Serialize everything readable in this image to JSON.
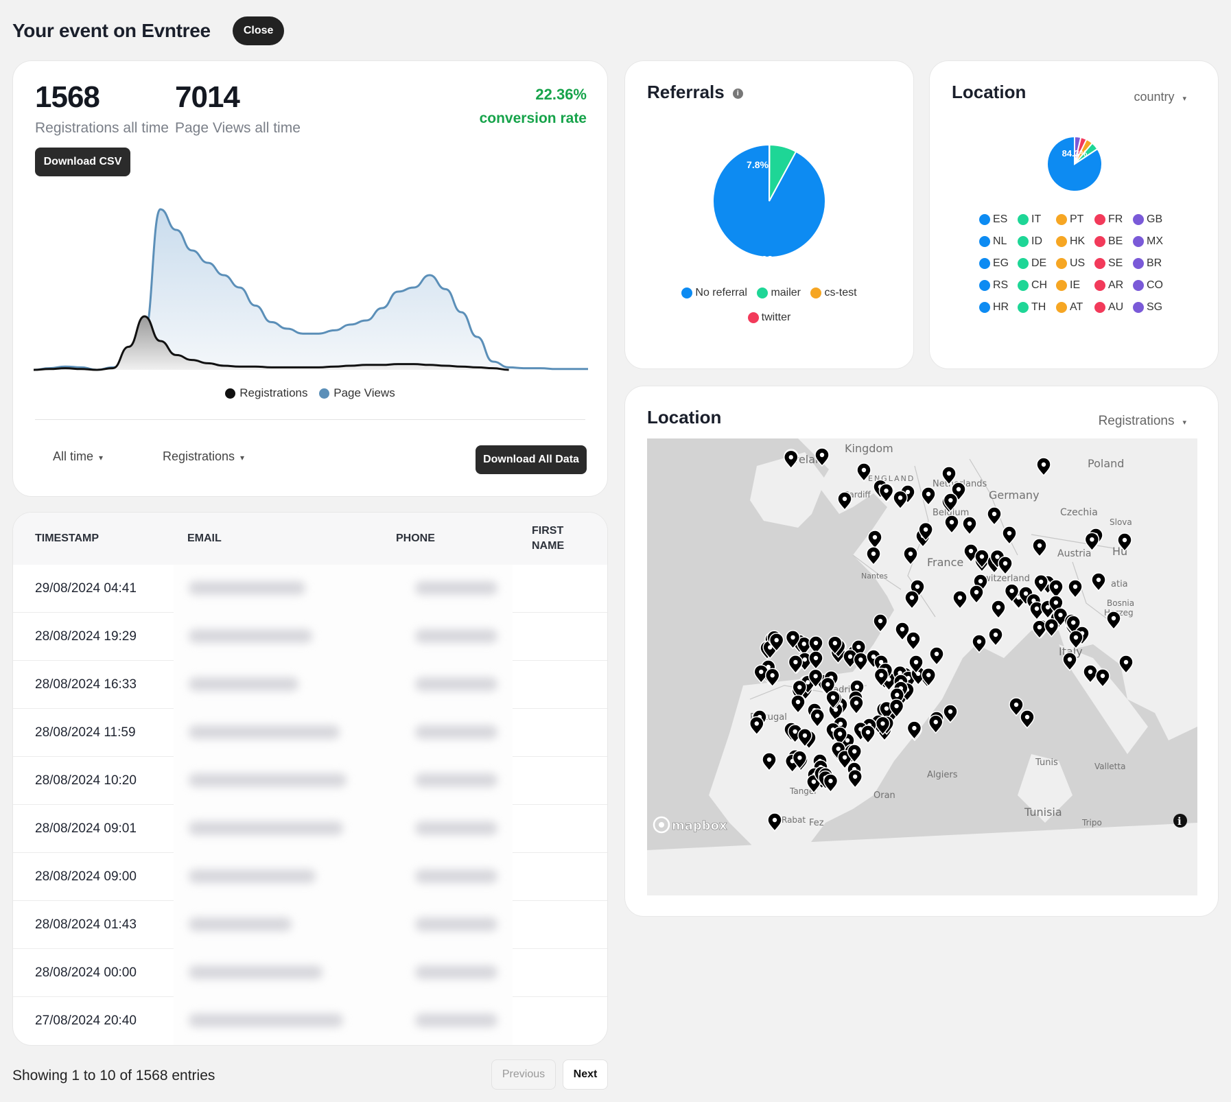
{
  "header": {
    "title": "Your event on Evntree",
    "close_label": "Close"
  },
  "stats": {
    "registrations_value": "1568",
    "registrations_label": "Registrations all time",
    "pageviews_value": "7014",
    "pageviews_label": "Page Views all time",
    "conversion_value": "22.36%",
    "conversion_label": "conversion rate",
    "download_csv_label": "Download CSV"
  },
  "trend_chart": {
    "legend": [
      {
        "name": "Registrations",
        "color": "#111111"
      },
      {
        "name": "Page Views",
        "color": "#5b8fb8"
      }
    ]
  },
  "filters": {
    "time_label": "All time",
    "metric_label": "Registrations",
    "download_all_label": "Download All Data"
  },
  "table": {
    "headers": {
      "timestamp": "TIMESTAMP",
      "email": "EMAIL",
      "phone": "PHONE",
      "first_name_line1": "FIRST",
      "first_name_line2": "NAME"
    },
    "rows": [
      {
        "timestamp": "29/08/2024 04:41"
      },
      {
        "timestamp": "28/08/2024 19:29"
      },
      {
        "timestamp": "28/08/2024 16:33"
      },
      {
        "timestamp": "28/08/2024 11:59"
      },
      {
        "timestamp": "28/08/2024 10:20"
      },
      {
        "timestamp": "28/08/2024 09:01"
      },
      {
        "timestamp": "28/08/2024 09:00"
      },
      {
        "timestamp": "28/08/2024 01:43"
      },
      {
        "timestamp": "28/08/2024 00:00"
      },
      {
        "timestamp": "27/08/2024 20:40"
      }
    ]
  },
  "pagination": {
    "summary": "Showing 1 to 10 of 1568 entries",
    "previous_label": "Previous",
    "next_label": "Next"
  },
  "referrals": {
    "title": "Referrals",
    "info_icon": "info-icon",
    "legend": [
      {
        "name": "No referral",
        "color": "#0d8bf2"
      },
      {
        "name": "mailer",
        "color": "#1ed696"
      },
      {
        "name": "cs-test",
        "color": "#f6a623"
      },
      {
        "name": "twitter",
        "color": "#f23a5a"
      }
    ]
  },
  "country": {
    "title": "Location",
    "select_label": "country",
    "pie_label": "84.3%",
    "legend": [
      {
        "code": "ES",
        "color": "#0d8bf2"
      },
      {
        "code": "IT",
        "color": "#1ed696"
      },
      {
        "code": "PT",
        "color": "#f6a623"
      },
      {
        "code": "FR",
        "color": "#f23a5a"
      },
      {
        "code": "GB",
        "color": "#7a5ad8"
      },
      {
        "code": "NL",
        "color": "#0d8bf2"
      },
      {
        "code": "ID",
        "color": "#1ed696"
      },
      {
        "code": "HK",
        "color": "#f6a623"
      },
      {
        "code": "BE",
        "color": "#f23a5a"
      },
      {
        "code": "MX",
        "color": "#7a5ad8"
      },
      {
        "code": "EG",
        "color": "#0d8bf2"
      },
      {
        "code": "DE",
        "color": "#1ed696"
      },
      {
        "code": "US",
        "color": "#f6a623"
      },
      {
        "code": "SE",
        "color": "#f23a5a"
      },
      {
        "code": "BR",
        "color": "#7a5ad8"
      },
      {
        "code": "RS",
        "color": "#0d8bf2"
      },
      {
        "code": "CH",
        "color": "#1ed696"
      },
      {
        "code": "IE",
        "color": "#f6a623"
      },
      {
        "code": "AR",
        "color": "#f23a5a"
      },
      {
        "code": "CO",
        "color": "#7a5ad8"
      },
      {
        "code": "HR",
        "color": "#0d8bf2"
      },
      {
        "code": "TH",
        "color": "#1ed696"
      },
      {
        "code": "AT",
        "color": "#f6a623"
      },
      {
        "code": "AU",
        "color": "#f23a5a"
      },
      {
        "code": "SG",
        "color": "#7a5ad8"
      }
    ]
  },
  "map": {
    "title": "Location",
    "select_label": "Registrations",
    "attribution": "mapbox",
    "labels": [
      "Kingdom",
      "Poland",
      "Germany",
      "Netherlands",
      "Belgium",
      "Czechia",
      "Austria",
      "France",
      "Nantes",
      "Switzerland",
      "Italy",
      "Portugal",
      "Algiers",
      "Oran",
      "Tunis",
      "Tunisia",
      "Valletta",
      "Fez",
      "Rabat",
      "Tanger",
      "Tripo",
      "Slova",
      "Bosnia",
      "Herzeg",
      "ENGLAND",
      "Cardiff",
      "atia",
      "Hu",
      "Irelan",
      "Madrid"
    ]
  },
  "chart_data": [
    {
      "type": "area",
      "title": "",
      "x": [
        0,
        1,
        2,
        3,
        4,
        5,
        6,
        7,
        8,
        9,
        10,
        11,
        12,
        13,
        14,
        15,
        16,
        17,
        18,
        19,
        20,
        21,
        22,
        23,
        24,
        25,
        26,
        27,
        28,
        29,
        30,
        31,
        32,
        33,
        34,
        35
      ],
      "series": [
        {
          "name": "Registrations",
          "values": [
            0,
            1,
            2,
            1,
            0,
            2,
            28,
            65,
            35,
            18,
            12,
            8,
            5,
            4,
            4,
            3,
            3,
            3,
            3,
            4,
            5,
            6,
            6,
            7,
            7,
            6,
            5,
            4,
            3,
            2,
            0,
            null,
            null,
            null,
            null,
            null
          ]
        },
        {
          "name": "Page Views",
          "values": [
            0,
            2,
            4,
            3,
            0,
            3,
            10,
            45,
            195,
            170,
            145,
            130,
            115,
            100,
            78,
            58,
            50,
            44,
            44,
            48,
            55,
            60,
            75,
            95,
            100,
            115,
            98,
            70,
            40,
            10,
            3,
            2,
            2,
            1,
            1,
            1
          ]
        }
      ]
    },
    {
      "type": "pie",
      "title": "Referrals",
      "categories": [
        "No referral",
        "mailer",
        "cs-test",
        "twitter"
      ],
      "values": [
        92.1,
        7.8,
        0.05,
        0.05
      ]
    },
    {
      "type": "pie",
      "title": "Location",
      "categories": [
        "ES",
        "IT",
        "PT",
        "FR",
        "GB"
      ],
      "values": [
        84.3,
        4.5,
        4.0,
        3.5,
        3.7
      ]
    }
  ]
}
